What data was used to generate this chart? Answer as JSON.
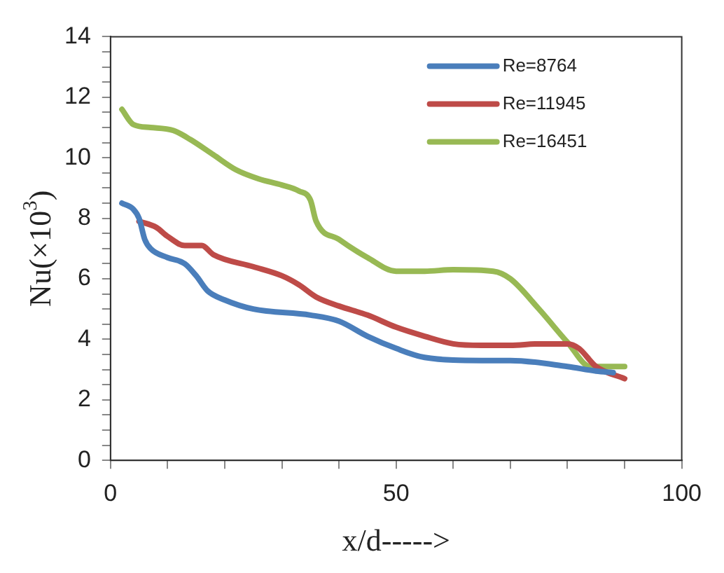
{
  "chart_data": {
    "type": "line",
    "xlabel": "x/d----->",
    "ylabel": "Nu(×10$^{3}$)",
    "xlim": [
      0,
      100
    ],
    "xticks": [
      0,
      {
        "value": 10,
        "label": null
      },
      {
        "value": 20,
        "label": null
      },
      {
        "value": 30,
        "label": null
      },
      {
        "value": 40,
        "label": null
      },
      50,
      {
        "value": 60,
        "label": null
      },
      {
        "value": 70,
        "label": null
      },
      {
        "value": 80,
        "label": null
      },
      {
        "value": 90,
        "label": null
      },
      100
    ],
    "ylim": [
      0,
      14
    ],
    "yticks": [
      0,
      {
        "value": 0.5,
        "label": null
      },
      {
        "value": 1,
        "label": null
      },
      {
        "value": 1.5,
        "label": null
      },
      2,
      {
        "value": 2.5,
        "label": null
      },
      {
        "value": 3,
        "label": null
      },
      {
        "value": 3.5,
        "label": null
      },
      4,
      {
        "value": 4.5,
        "label": null
      },
      {
        "value": 5,
        "label": null
      },
      {
        "value": 5.5,
        "label": null
      },
      6,
      {
        "value": 6.5,
        "label": null
      },
      {
        "value": 7,
        "label": null
      },
      {
        "value": 7.5,
        "label": null
      },
      8,
      {
        "value": 8.5,
        "label": null
      },
      {
        "value": 9,
        "label": null
      },
      {
        "value": 9.5,
        "label": null
      },
      10,
      {
        "value": 10.5,
        "label": null
      },
      {
        "value": 11,
        "label": null
      },
      {
        "value": 11.5,
        "label": null
      },
      12,
      {
        "value": 12.5,
        "label": null
      },
      {
        "value": 13,
        "label": null
      },
      {
        "value": 13.5,
        "label": null
      },
      14
    ],
    "grid": false,
    "legend": "top right",
    "marker": "none",
    "line_style": "solid",
    "series": [
      {
        "name": "Re=8764",
        "color": "#4a7ebb",
        "x": [
          2,
          4,
          5,
          6,
          7,
          10,
          13,
          15,
          17,
          20,
          25,
          35,
          40,
          45,
          50,
          55,
          65,
          70,
          80,
          85,
          88
        ],
        "values": [
          8.5,
          8.3,
          8.0,
          7.3,
          7.0,
          6.7,
          6.5,
          6.1,
          5.6,
          5.3,
          5.0,
          4.8,
          4.6,
          4.1,
          3.7,
          3.4,
          3.3,
          3.3,
          3.1,
          2.95,
          2.9
        ]
      },
      {
        "name": "Re=11945",
        "color": "#be4b48",
        "x": [
          5,
          8,
          10,
          13,
          16,
          18,
          25,
          30,
          33,
          36,
          40,
          45,
          50,
          55,
          60,
          65,
          70,
          75,
          80,
          82,
          85,
          90
        ],
        "values": [
          7.9,
          7.7,
          7.4,
          7.1,
          7.1,
          6.8,
          6.4,
          6.1,
          5.8,
          5.4,
          5.1,
          4.8,
          4.4,
          4.1,
          3.85,
          3.8,
          3.8,
          3.85,
          3.85,
          3.7,
          3.1,
          2.7
        ]
      },
      {
        "name": "Re=16451",
        "color": "#98b954",
        "x": [
          2,
          4,
          7,
          11,
          14,
          18,
          22,
          26,
          30,
          33,
          35,
          36,
          40,
          45,
          50,
          55,
          60,
          67,
          70,
          75,
          80,
          84,
          87,
          90
        ],
        "values": [
          11.6,
          11.1,
          11.0,
          10.9,
          10.6,
          10.1,
          9.6,
          9.3,
          9.1,
          8.9,
          8.6,
          7.9,
          7.3,
          6.7,
          6.25,
          6.25,
          6.3,
          6.25,
          6.0,
          5.0,
          3.9,
          3.1,
          3.1,
          3.1
        ]
      }
    ]
  }
}
